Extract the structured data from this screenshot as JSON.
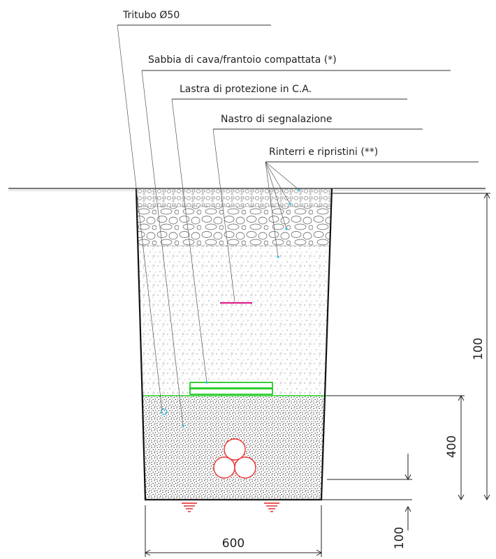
{
  "labels": {
    "tritubo": "Tritubo Ø50",
    "sabbia": "Sabbia di cava/frantoio compattata (*)",
    "lastra": "Lastra di protezione in C.A.",
    "nastro": "Nastro di segnalazione",
    "rinterri": "Rinterri e ripristini (**)"
  },
  "dimensions": {
    "total_depth": "100",
    "bedding_height": "400",
    "width": "600",
    "bottom_offset": "100"
  },
  "colors": {
    "outline": "#111111",
    "plate": "#22cc22",
    "tape": "#e0208a",
    "pipes": "#ee3333",
    "marker": "#33bbdd",
    "ground_marker": "#dd2222"
  }
}
